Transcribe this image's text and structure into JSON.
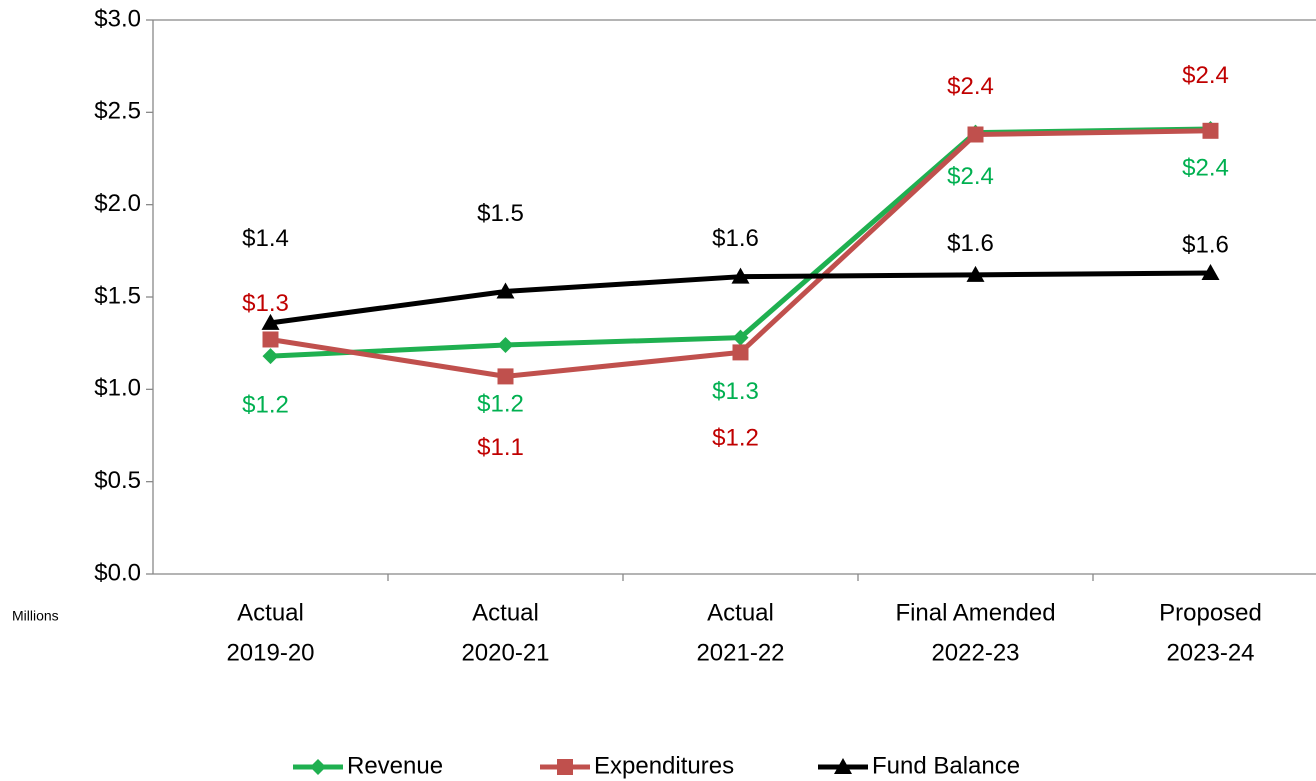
{
  "chart_data": {
    "type": "line",
    "y_axis_unit": "Millions",
    "categories": [
      [
        "Actual",
        "2019-20"
      ],
      [
        "Actual",
        "2020-21"
      ],
      [
        "Actual",
        "2021-22"
      ],
      [
        "Final Amended",
        "2022-23"
      ],
      [
        "Proposed",
        "2023-24"
      ]
    ],
    "series": [
      {
        "name": "Revenue",
        "color": "#1fb050",
        "label_color": "#00b050",
        "marker": "diamond",
        "values": [
          1.18,
          1.24,
          1.28,
          2.39,
          2.41
        ],
        "value_labels": [
          "$1.2",
          "$1.2",
          "$1.3",
          "$2.4",
          "$2.4"
        ]
      },
      {
        "name": "Expenditures",
        "color": "#c0504d",
        "label_color": "#c00000",
        "marker": "square",
        "values": [
          1.27,
          1.07,
          1.2,
          2.38,
          2.4
        ],
        "value_labels": [
          "$1.3",
          "$1.1",
          "$1.2",
          "$2.4",
          "$2.4"
        ]
      },
      {
        "name": "Fund Balance",
        "color": "#000000",
        "label_color": "#000000",
        "marker": "triangle",
        "values": [
          1.36,
          1.53,
          1.61,
          1.62,
          1.63
        ],
        "value_labels": [
          "$1.4",
          "$1.5",
          "$1.6",
          "$1.6",
          "$1.6"
        ]
      }
    ],
    "ylim": [
      0,
      3
    ],
    "yticks": [
      {
        "value": 0,
        "label": "$0.0"
      },
      {
        "value": 0.5,
        "label": "$0.5"
      },
      {
        "value": 1,
        "label": "$1.0"
      },
      {
        "value": 1.5,
        "label": "$1.5"
      },
      {
        "value": 2,
        "label": "$2.0"
      },
      {
        "value": 2.5,
        "label": "$2.5"
      },
      {
        "value": 3,
        "label": "$3.0"
      }
    ],
    "grid": false,
    "legend": "bottom"
  }
}
